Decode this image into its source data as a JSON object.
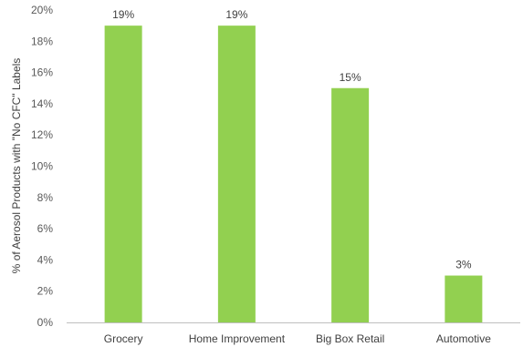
{
  "chart_data": {
    "type": "bar",
    "title": "",
    "xlabel": "",
    "ylabel": "% of Aerosol Products with \"No CFC\" Labels",
    "categories": [
      "Grocery",
      "Home Improvement",
      "Big Box Retail",
      "Automotive"
    ],
    "values": [
      19,
      19,
      15,
      3
    ],
    "data_labels": [
      "19%",
      "19%",
      "15%",
      "3%"
    ],
    "ylim": [
      0,
      20
    ],
    "y_ticks": [
      0,
      2,
      4,
      6,
      8,
      10,
      12,
      14,
      16,
      18,
      20
    ],
    "y_tick_labels": [
      "0%",
      "2%",
      "4%",
      "6%",
      "8%",
      "10%",
      "12%",
      "14%",
      "16%",
      "18%",
      "20%"
    ],
    "grid": false,
    "legend": "none",
    "bar_color": "#92d050",
    "axis_color": "#bfbfbf"
  }
}
